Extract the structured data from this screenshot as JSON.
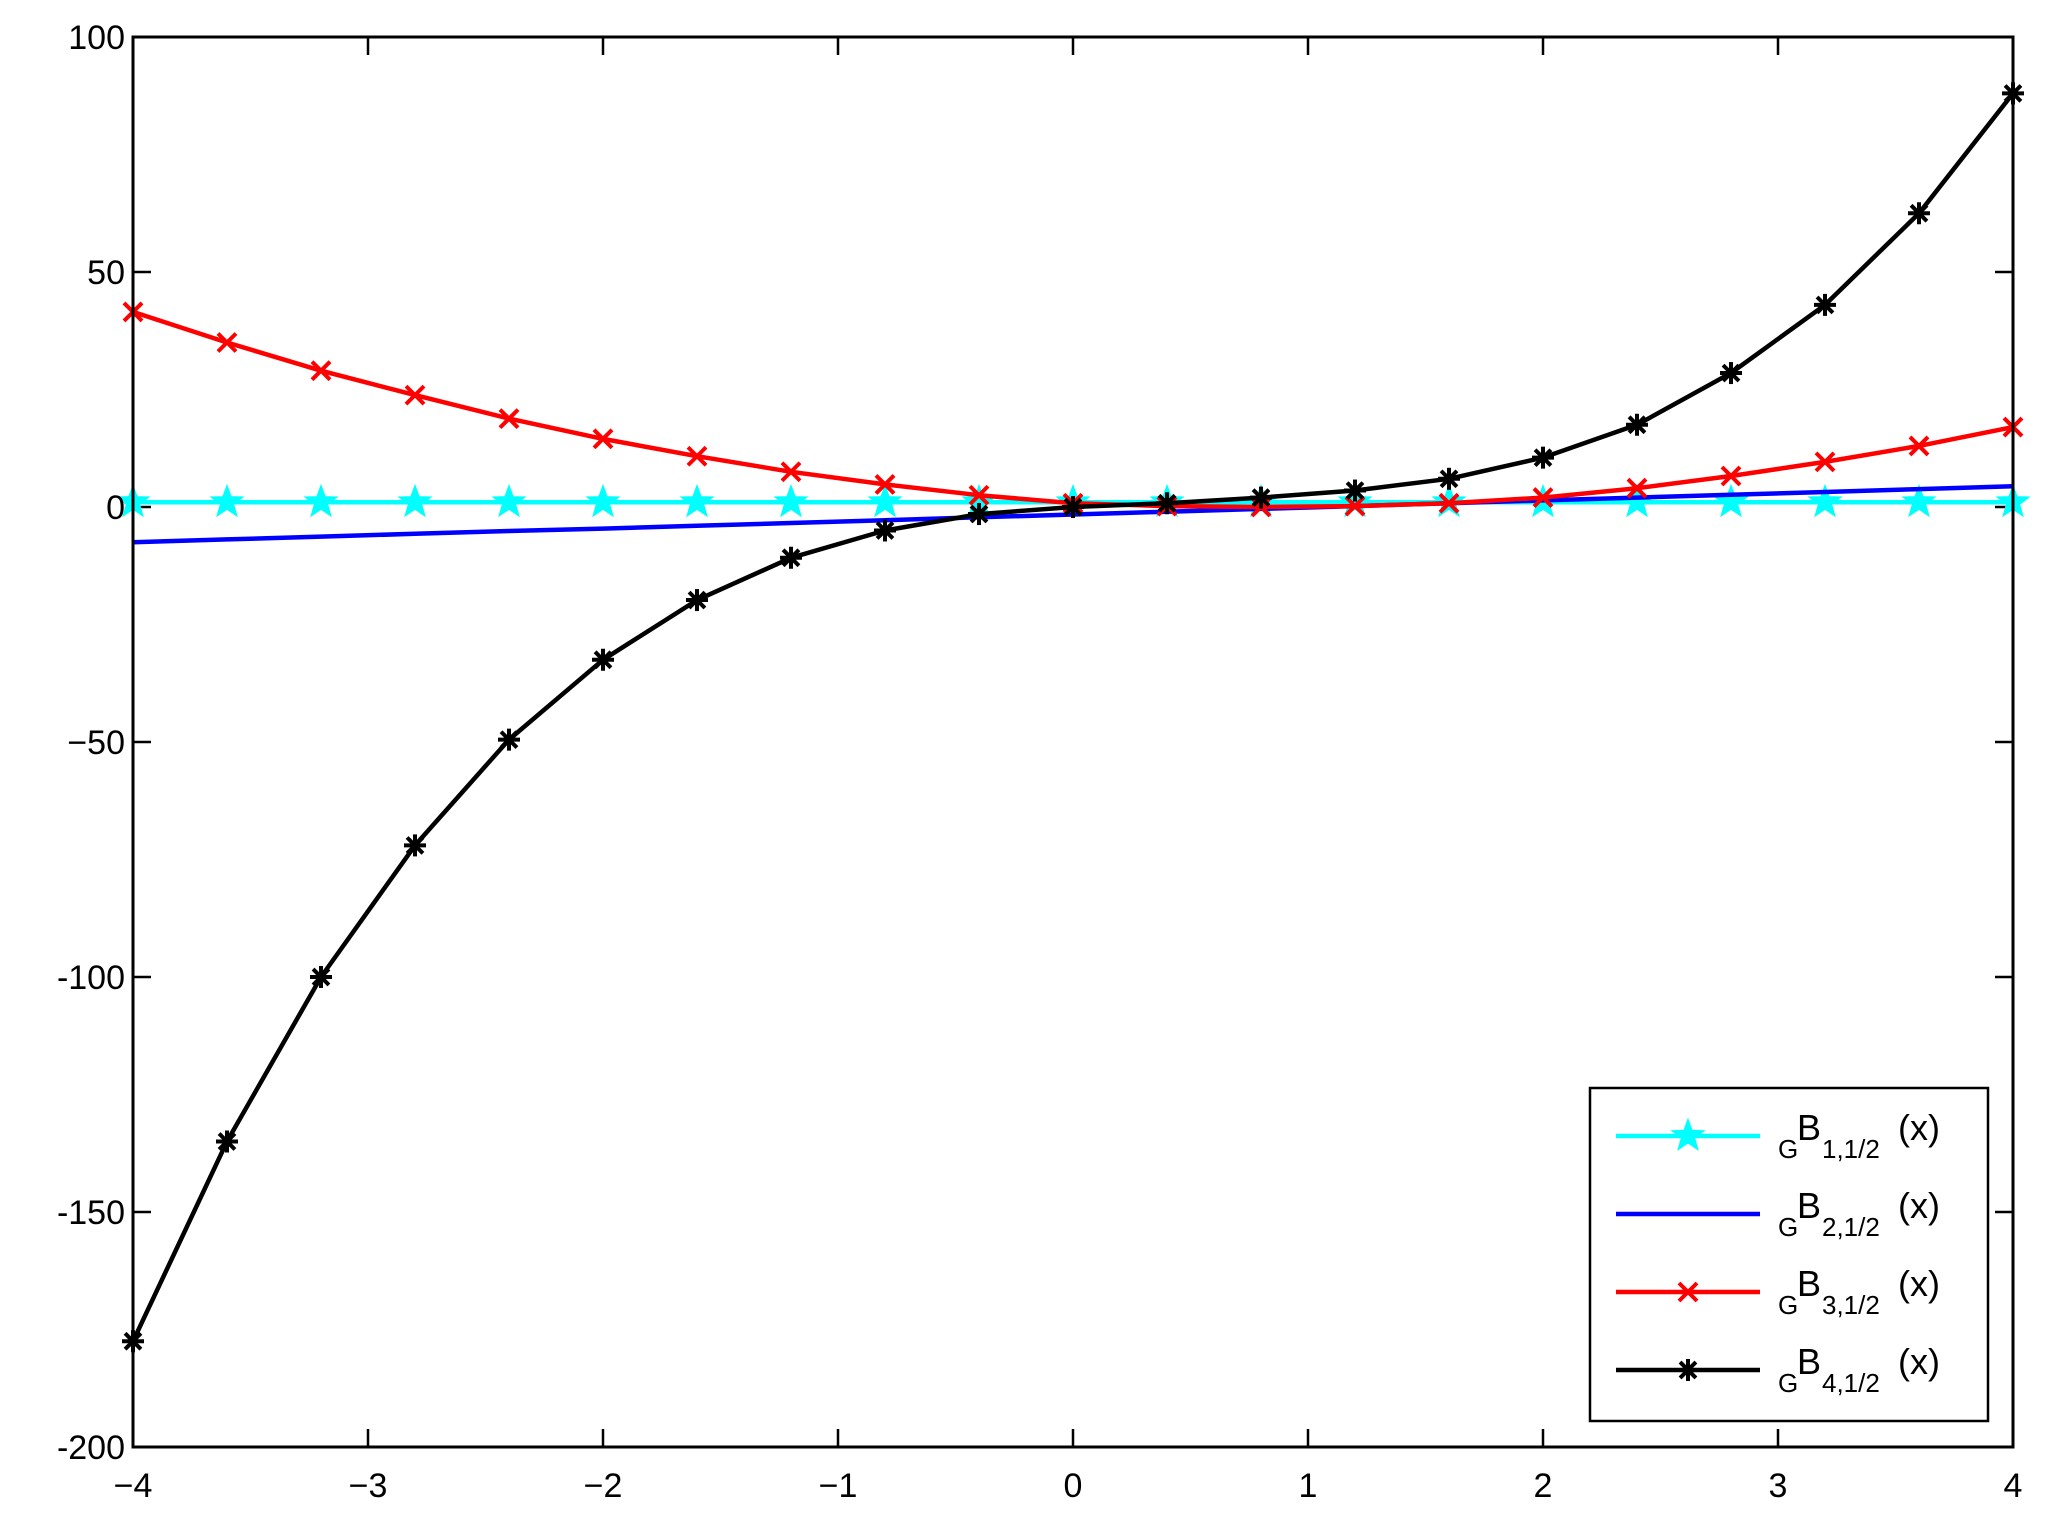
{
  "chart_data": {
    "type": "line",
    "title": "",
    "xlabel": "",
    "ylabel": "",
    "xlim": [
      -4,
      4
    ],
    "ylim": [
      -200,
      100
    ],
    "x_ticks": [
      -4,
      -3,
      -2,
      -1,
      0,
      1,
      2,
      3,
      4
    ],
    "x_tick_labels": [
      "−4",
      "−3",
      "−2",
      "−1",
      "0",
      "1",
      "2",
      "3",
      "4"
    ],
    "y_ticks": [
      100,
      50,
      0,
      -50,
      -100,
      -150,
      -200
    ],
    "y_tick_labels": [
      "100",
      "50",
      "0",
      "−50",
      "-100",
      "-150",
      "-200"
    ],
    "grid": false,
    "legend_position": "bottom-right",
    "x": [
      -4,
      -3.6,
      -3.2,
      -2.8,
      -2.4,
      -2,
      -1.6,
      -1.2,
      -0.8,
      -0.4,
      0,
      0.4,
      0.8,
      1.2,
      1.6,
      2,
      2.4,
      2.8,
      3.2,
      3.6,
      4
    ],
    "series": [
      {
        "legend_base": "B",
        "legend_pre": "G",
        "legend_sub": "1,1/2",
        "legend_suffix": "(x)",
        "color": "#00ffff",
        "marker": "pentagram",
        "values": [
          1,
          1,
          1,
          1,
          1,
          1,
          1,
          1,
          1,
          1,
          1,
          1,
          1,
          1,
          1,
          1,
          1,
          1,
          1,
          1,
          1
        ]
      },
      {
        "legend_base": "B",
        "legend_pre": "G",
        "legend_sub": "2,1/2",
        "legend_suffix": "(x)",
        "color": "#0000ff",
        "marker": "none",
        "values": [
          -7.5,
          -6.9,
          -6.3,
          -5.7,
          -5.1,
          -4.6,
          -4.0,
          -3.4,
          -2.8,
          -2.2,
          -1.6,
          -1.0,
          -0.4,
          0.2,
          0.8,
          1.4,
          2.0,
          2.6,
          3.2,
          3.8,
          4.4
        ]
      },
      {
        "legend_base": "B",
        "legend_pre": "G",
        "legend_sub": "3,1/2",
        "legend_suffix": "(x)",
        "color": "#ff0000",
        "marker": "x",
        "values": [
          41.5,
          35,
          29,
          23.8,
          18.8,
          14.5,
          10.8,
          7.5,
          4.8,
          2.5,
          0.8,
          0.2,
          0,
          0.2,
          0.8,
          2,
          4,
          6.6,
          9.6,
          13,
          17
        ]
      },
      {
        "legend_base": "B",
        "legend_pre": "G",
        "legend_sub": "4,1/2",
        "legend_suffix": "(x)",
        "color": "#000000",
        "marker": "asterisk",
        "values": [
          -177.5,
          -135,
          -100,
          -72,
          -49.5,
          -32.5,
          -19.8,
          -10.8,
          -5,
          -1.5,
          0,
          0.8,
          2,
          3.5,
          6,
          10.5,
          17.5,
          28.5,
          43,
          62.5,
          88
        ]
      }
    ]
  }
}
